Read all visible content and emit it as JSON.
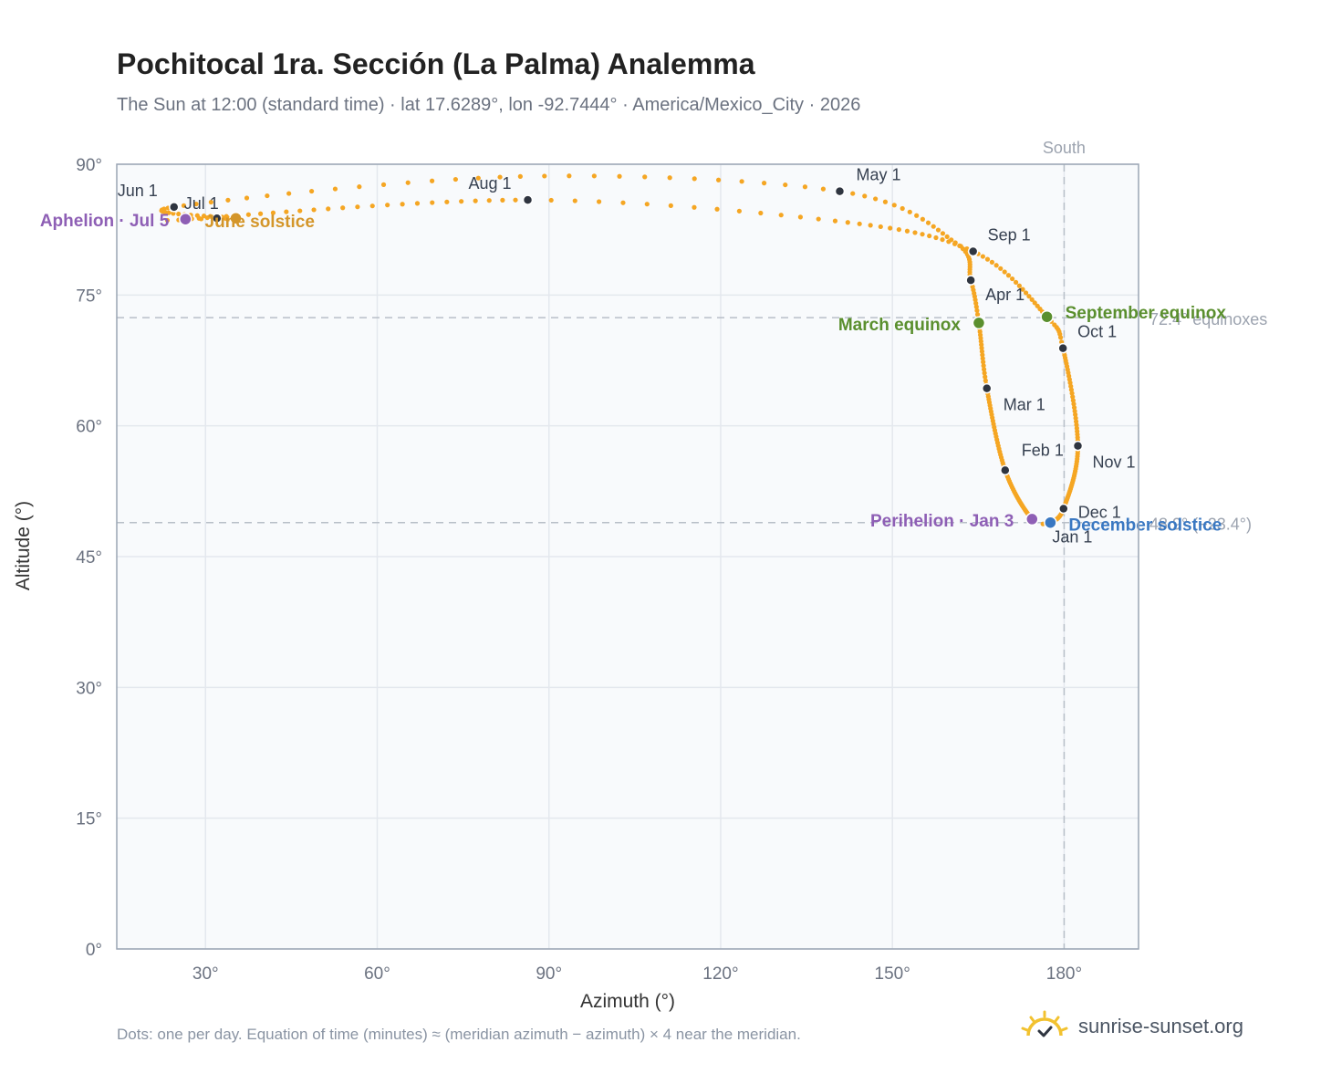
{
  "title": "Pochitocal 1ra. Sección (La Palma) Analemma",
  "subtitle": "The Sun at 12:00 (standard time) · lat 17.6289°, lon -92.7444° · America/Mexico_City · 2026",
  "footnote": "Dots: one per day. Equation of time (minutes) ≈ (meridian azimuth − azimuth) × 4 near the meridian.",
  "brand": {
    "name": "sunrise-sunset.org",
    "logo_icon": "sun-logo-icon"
  },
  "colors": {
    "path": "#f5a623",
    "month_marker": "#2f3540",
    "equinox": "#5a8f2e",
    "december_solstice": "#3a78c2",
    "june_solstice": "#d4962a",
    "apsis": "#8e5fb5",
    "plot_bg": "#f8fafc",
    "grid": "#e4e8ee",
    "ref_line": "#b8bfc8"
  },
  "chart_data": {
    "type": "scatter",
    "title": "Pochitocal 1ra. Sección (La Palma) Analemma",
    "xlabel": "Azimuth (°)",
    "ylabel": "Altitude (°)",
    "xlim": [
      14.5,
      193
    ],
    "ylim": [
      0,
      90
    ],
    "xticks": [
      30,
      60,
      90,
      120,
      150,
      180
    ],
    "yticks": [
      0,
      15,
      30,
      45,
      60,
      75,
      90
    ],
    "tick_suffix": "°",
    "grid": true,
    "meridian": {
      "azimuth": 180,
      "label": "South"
    },
    "reference_lines": [
      {
        "altitude": 72.4,
        "label": "72.4° equinoxes"
      },
      {
        "altitude": 48.9,
        "label": "48.9° (−23.4°)"
      }
    ],
    "daily_path_keypoints": [
      {
        "date": "Jan 1",
        "az": 177.6,
        "alt": 48.9
      },
      {
        "date": "Jan 3",
        "az": 174.4,
        "alt": 49.3
      },
      {
        "date": "Feb 1",
        "az": 169.7,
        "alt": 54.9
      },
      {
        "date": "Mar 1",
        "az": 166.5,
        "alt": 64.3
      },
      {
        "date": "Mar 20",
        "az": 165.1,
        "alt": 71.8
      },
      {
        "date": "Apr 1",
        "az": 163.7,
        "alt": 76.7
      },
      {
        "date": "Apr 15",
        "az": 161.0,
        "alt": 81.0
      },
      {
        "date": "May 1",
        "az": 140.8,
        "alt": 86.9
      },
      {
        "date": "May 15",
        "az": 85.0,
        "alt": 88.6
      },
      {
        "date": "Jun 1",
        "az": 24.5,
        "alt": 85.1
      },
      {
        "date": "Jun 21",
        "az": 35.3,
        "alt": 83.8
      },
      {
        "date": "Jul 1",
        "az": 32.0,
        "alt": 83.8
      },
      {
        "date": "Jul 5",
        "az": 26.5,
        "alt": 83.7
      },
      {
        "date": "Aug 1",
        "az": 86.3,
        "alt": 85.9
      },
      {
        "date": "Aug 15",
        "az": 140.0,
        "alt": 83.5
      },
      {
        "date": "Sep 1",
        "az": 164.1,
        "alt": 80.0
      },
      {
        "date": "Sep 22",
        "az": 177.0,
        "alt": 72.5
      },
      {
        "date": "Oct 1",
        "az": 179.8,
        "alt": 68.9
      },
      {
        "date": "Nov 1",
        "az": 182.4,
        "alt": 57.7
      },
      {
        "date": "Dec 1",
        "az": 179.9,
        "alt": 50.5
      },
      {
        "date": "Dec 21",
        "az": 177.6,
        "alt": 48.9
      }
    ],
    "month_markers": [
      {
        "label": "Jan 1",
        "az": 177.6,
        "alt": 48.9
      },
      {
        "label": "Feb 1",
        "az": 169.7,
        "alt": 54.9
      },
      {
        "label": "Mar 1",
        "az": 166.5,
        "alt": 64.3
      },
      {
        "label": "Apr 1",
        "az": 163.7,
        "alt": 76.7
      },
      {
        "label": "May 1",
        "az": 140.8,
        "alt": 86.9
      },
      {
        "label": "Jun 1",
        "az": 24.5,
        "alt": 85.1
      },
      {
        "label": "Jul 1",
        "az": 32.0,
        "alt": 83.8
      },
      {
        "label": "Aug 1",
        "az": 86.3,
        "alt": 85.9
      },
      {
        "label": "Sep 1",
        "az": 164.1,
        "alt": 80.0
      },
      {
        "label": "Oct 1",
        "az": 179.8,
        "alt": 68.9
      },
      {
        "label": "Nov 1",
        "az": 182.4,
        "alt": 57.7
      },
      {
        "label": "Dec 1",
        "az": 179.9,
        "alt": 50.5
      }
    ],
    "events": [
      {
        "label": "March equinox",
        "az": 165.1,
        "alt": 71.8,
        "color": "#5a8f2e"
      },
      {
        "label": "September equinox",
        "az": 177.0,
        "alt": 72.5,
        "color": "#5a8f2e"
      },
      {
        "label": "December solstice",
        "az": 177.6,
        "alt": 48.9,
        "color": "#3a78c2"
      },
      {
        "label": "June solstice",
        "az": 35.3,
        "alt": 83.8,
        "color": "#d4962a"
      },
      {
        "label": "Perihelion · Jan 3",
        "az": 174.4,
        "alt": 49.3,
        "color": "#8e5fb5"
      },
      {
        "label": "Aphelion · Jul 5",
        "az": 26.5,
        "alt": 83.7,
        "color": "#8e5fb5"
      }
    ]
  }
}
